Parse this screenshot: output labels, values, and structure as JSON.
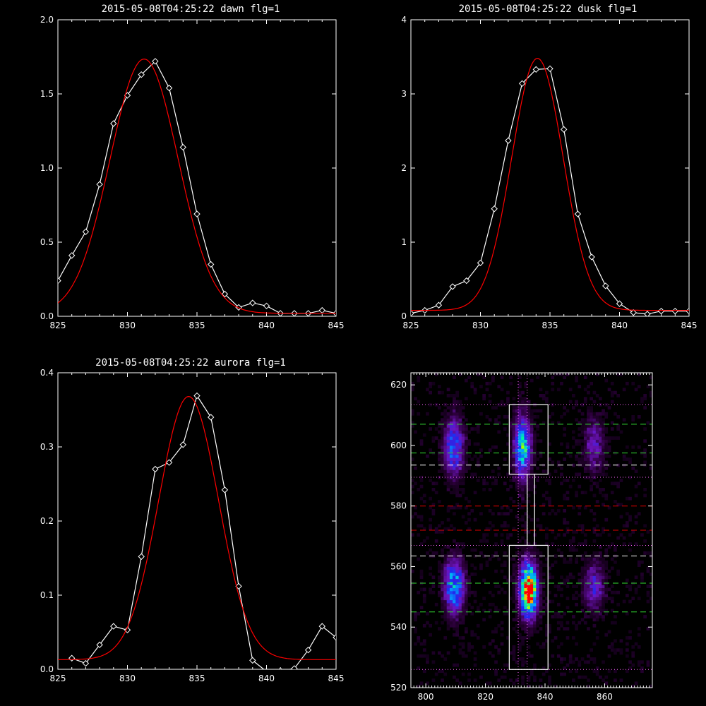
{
  "chart_data": [
    {
      "type": "line",
      "title": "2015-05-08T04:25:22 dawn flg=1",
      "xlim": [
        825,
        845
      ],
      "ylim": [
        0,
        2.0
      ],
      "xticks": [
        825,
        830,
        835,
        840,
        845
      ],
      "xtick_labels": [
        "825",
        "830",
        "835",
        "840",
        "845"
      ],
      "yticks": [
        0,
        0.5,
        1.0,
        1.5,
        2.0
      ],
      "ytick_labels": [
        "0.0",
        "0.5",
        "1.0",
        "1.5",
        "2.0"
      ],
      "series": [
        {
          "color": "#ffffff",
          "marker": "diamond",
          "x": [
            825,
            826,
            827,
            828,
            829,
            830,
            831,
            832,
            833,
            834,
            835,
            836,
            837,
            838,
            839,
            840,
            841,
            842,
            843,
            844,
            845
          ],
          "y": [
            0.24,
            0.41,
            0.57,
            0.89,
            1.3,
            1.49,
            1.63,
            1.72,
            1.54,
            1.14,
            0.69,
            0.35,
            0.15,
            0.06,
            0.09,
            0.07,
            0.02,
            0.02,
            0.02,
            0.04,
            0.02
          ]
        },
        {
          "color": "#ff0000",
          "curve": "gaussian",
          "peak": 1.715,
          "center": 831.2,
          "sigma": 2.45,
          "offset": 0.02
        }
      ]
    },
    {
      "type": "line",
      "title": "2015-05-08T04:25:22 dusk flg=1",
      "xlim": [
        825,
        845
      ],
      "ylim": [
        0,
        4
      ],
      "xticks": [
        825,
        830,
        835,
        840,
        845
      ],
      "xtick_labels": [
        "825",
        "830",
        "835",
        "840",
        "845"
      ],
      "yticks": [
        0,
        1,
        2,
        3,
        4
      ],
      "ytick_labels": [
        "0",
        "1",
        "2",
        "3",
        "4"
      ],
      "series": [
        {
          "color": "#ffffff",
          "marker": "diamond",
          "x": [
            825,
            826,
            827,
            828,
            829,
            830,
            831,
            832,
            833,
            834,
            835,
            836,
            837,
            838,
            839,
            840,
            841,
            842,
            843,
            844,
            845
          ],
          "y": [
            0.04,
            0.08,
            0.15,
            0.4,
            0.48,
            0.72,
            1.45,
            2.37,
            3.14,
            3.33,
            3.34,
            2.52,
            1.38,
            0.8,
            0.41,
            0.17,
            0.05,
            0.03,
            0.07,
            0.07,
            0.07
          ]
        },
        {
          "color": "#ff0000",
          "curve": "gaussian",
          "peak": 3.4,
          "center": 834.1,
          "sigma": 1.85,
          "offset": 0.08
        }
      ]
    },
    {
      "type": "line",
      "title": "2015-05-08T04:25:22 aurora flg=1",
      "xlim": [
        825,
        845
      ],
      "ylim": [
        0,
        0.4
      ],
      "xticks": [
        825,
        830,
        835,
        840,
        845
      ],
      "xtick_labels": [
        "825",
        "830",
        "835",
        "840",
        "845"
      ],
      "yticks": [
        0,
        0.1,
        0.2,
        0.3,
        0.4
      ],
      "ytick_labels": [
        "0.0",
        "0.1",
        "0.2",
        "0.3",
        "0.4"
      ],
      "series": [
        {
          "color": "#ffffff",
          "marker": "diamond",
          "x": [
            826,
            827,
            828,
            829,
            830,
            831,
            832,
            833,
            834,
            835,
            836,
            837,
            838,
            839,
            840,
            841,
            842,
            843,
            844,
            845
          ],
          "y": [
            0.015,
            0.008,
            0.033,
            0.058,
            0.053,
            0.152,
            0.27,
            0.279,
            0.303,
            0.369,
            0.34,
            0.242,
            0.112,
            0.012,
            -0.003,
            -0.002,
            0.001,
            0.026,
            0.058,
            0.043
          ]
        },
        {
          "color": "#ff0000",
          "curve": "gaussian",
          "peak": 0.355,
          "center": 834.4,
          "sigma": 2.15,
          "offset": 0.013
        }
      ]
    },
    {
      "type": "heatmap",
      "xlim": [
        795,
        876
      ],
      "ylim": [
        520,
        624
      ],
      "xticks": [
        800,
        820,
        840,
        860
      ],
      "xtick_labels": [
        "800",
        "820",
        "840",
        "860"
      ],
      "yticks": [
        520,
        540,
        560,
        580,
        600,
        620
      ],
      "ytick_labels": [
        "520",
        "540",
        "560",
        "580",
        "600",
        "620"
      ],
      "blobs": [
        {
          "x": 809,
          "y": 599,
          "sx": 2.2,
          "sy": 6.5,
          "amp": 0.45
        },
        {
          "x": 832,
          "y": 599,
          "sx": 1.9,
          "sy": 7.0,
          "amp": 0.6
        },
        {
          "x": 856,
          "y": 600,
          "sx": 2.3,
          "sy": 6.0,
          "amp": 0.25
        },
        {
          "x": 809,
          "y": 553,
          "sx": 2.3,
          "sy": 6.0,
          "amp": 0.55
        },
        {
          "x": 834,
          "y": 552,
          "sx": 2.0,
          "sy": 6.0,
          "amp": 1.0
        },
        {
          "x": 856,
          "y": 553,
          "sx": 2.3,
          "sy": 5.5,
          "amp": 0.3
        }
      ],
      "green_dashed_y": [
        607,
        597.5,
        554.5,
        545
      ],
      "white_dashed_y": [
        593.5,
        563.5
      ],
      "red_dashed_y": [
        580,
        572
      ],
      "magenta_dotted_y": [
        613.5,
        589.5,
        567,
        526
      ],
      "magenta_dotted_x": [
        831,
        834
      ],
      "upper_box": {
        "x0": 828,
        "x1": 841,
        "y0": 590.5,
        "y1": 613.5
      },
      "lower_box": {
        "x0": 828,
        "x1": 841,
        "y0": 526,
        "y1": 567
      },
      "connector": {
        "x0": 834,
        "x1": 836.5,
        "y0": 567,
        "y1": 590.5
      }
    }
  ]
}
